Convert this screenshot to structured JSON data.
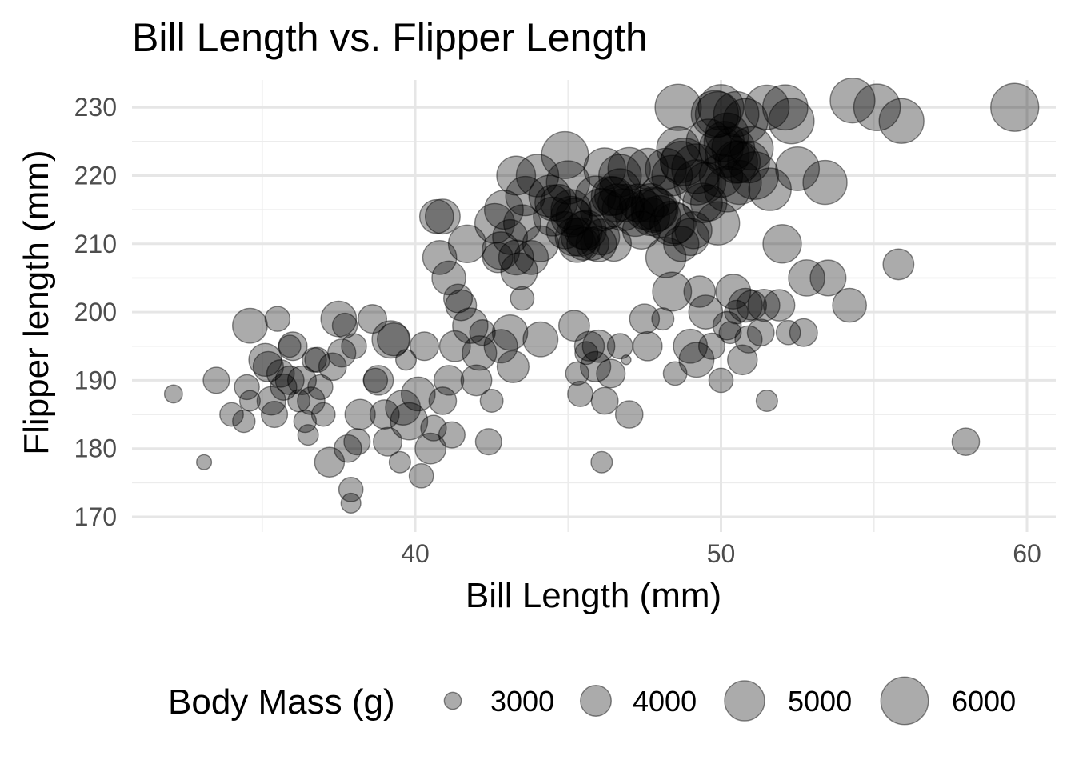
{
  "chart_data": {
    "type": "scatter",
    "title": "Bill Length vs. Flipper Length",
    "xlabel": "Bill Length (mm)",
    "ylabel": "Flipper length (mm)",
    "xlim": [
      31.5,
      60.5
    ],
    "ylim": [
      169,
      234
    ],
    "x_ticks": [
      40,
      50,
      60
    ],
    "y_ticks": [
      170,
      180,
      190,
      200,
      210,
      220,
      230
    ],
    "grid": true,
    "legend": {
      "title": "Body Mass (g)",
      "placement": "bottom",
      "sizes": [
        3000,
        4000,
        5000,
        6000
      ]
    },
    "size_range": [
      2700,
      6300
    ],
    "point_color": "#000000",
    "point_opacity": 0.33,
    "points": [
      [
        32.1,
        188,
        3050
      ],
      [
        33.1,
        178,
        2900
      ],
      [
        33.5,
        190,
        3600
      ],
      [
        34.0,
        185,
        3400
      ],
      [
        34.4,
        184,
        3325
      ],
      [
        34.5,
        189,
        3500
      ],
      [
        34.6,
        198,
        4400
      ],
      [
        34.6,
        187,
        3200
      ],
      [
        35.1,
        193,
        4200
      ],
      [
        35.2,
        192,
        3950
      ],
      [
        35.3,
        187,
        3800
      ],
      [
        35.5,
        199,
        3500
      ],
      [
        35.6,
        191,
        3700
      ],
      [
        35.7,
        189,
        3600
      ],
      [
        35.9,
        190,
        3800
      ],
      [
        35.9,
        195,
        3300
      ],
      [
        36.0,
        195,
        3800
      ],
      [
        36.2,
        187,
        3300
      ],
      [
        36.4,
        184,
        3325
      ],
      [
        36.5,
        182,
        3200
      ],
      [
        36.6,
        187,
        3700
      ],
      [
        36.7,
        193,
        3450
      ],
      [
        36.8,
        193,
        3500
      ],
      [
        37.0,
        185,
        3400
      ],
      [
        37.2,
        178,
        3900
      ],
      [
        37.3,
        192,
        3700
      ],
      [
        37.6,
        194,
        3750
      ],
      [
        37.7,
        198,
        3500
      ],
      [
        37.8,
        180,
        3700
      ],
      [
        37.9,
        172,
        3150
      ],
      [
        38.1,
        181,
        3600
      ],
      [
        38.2,
        185,
        3950
      ],
      [
        38.6,
        199,
        3800
      ],
      [
        38.8,
        190,
        3900
      ],
      [
        39.0,
        185,
        3850
      ],
      [
        39.2,
        196,
        4675
      ],
      [
        39.5,
        178,
        3250
      ],
      [
        39.6,
        186,
        4400
      ],
      [
        39.7,
        193,
        3200
      ],
      [
        40.1,
        188,
        4300
      ],
      [
        40.3,
        195,
        3800
      ],
      [
        40.6,
        183,
        3550
      ],
      [
        40.9,
        187,
        3700
      ],
      [
        41.1,
        190,
        3900
      ],
      [
        41.3,
        195,
        4000
      ],
      [
        41.5,
        201,
        4000
      ],
      [
        41.8,
        198,
        4450
      ],
      [
        42.0,
        190,
        4000
      ],
      [
        42.2,
        197,
        3550
      ],
      [
        42.5,
        187,
        3350
      ],
      [
        42.8,
        195,
        4250
      ],
      [
        43.2,
        192,
        4100
      ],
      [
        43.5,
        202,
        3400
      ],
      [
        44.1,
        196,
        4400
      ],
      [
        40.5,
        180,
        4000
      ],
      [
        40.2,
        176,
        3450
      ],
      [
        39.8,
        184,
        4650
      ],
      [
        39.1,
        181,
        3800
      ],
      [
        38.0,
        195,
        3500
      ],
      [
        37.5,
        199,
        4475
      ],
      [
        36.9,
        189,
        3500
      ],
      [
        36.3,
        190,
        3800
      ],
      [
        35.4,
        185,
        3600
      ],
      [
        37.9,
        174,
        3450
      ],
      [
        38.7,
        190,
        3450
      ],
      [
        39.3,
        196,
        4200
      ],
      [
        40.8,
        208,
        4300
      ],
      [
        41.1,
        205,
        4300
      ],
      [
        41.4,
        202,
        3800
      ],
      [
        40.7,
        214,
        4300
      ],
      [
        42.1,
        194,
        4350
      ],
      [
        43.1,
        197,
        4450
      ],
      [
        42.4,
        181,
        3600
      ],
      [
        41.2,
        182,
        3600
      ],
      [
        40.9,
        214,
        4400
      ],
      [
        45.2,
        198,
        4000
      ],
      [
        46.1,
        178,
        3250
      ],
      [
        45.5,
        210,
        4200
      ],
      [
        45.9,
        192,
        3950
      ],
      [
        46.4,
        191,
        3800
      ],
      [
        46.7,
        195,
        3525
      ],
      [
        47.0,
        185,
        3700
      ],
      [
        47.5,
        199,
        3900
      ],
      [
        48.1,
        199,
        3300
      ],
      [
        48.5,
        191,
        3400
      ],
      [
        49.0,
        195,
        4300
      ],
      [
        49.5,
        200,
        4300
      ],
      [
        50.0,
        190,
        3450
      ],
      [
        50.3,
        197,
        3300
      ],
      [
        50.7,
        193,
        3900
      ],
      [
        51.0,
        201,
        3900
      ],
      [
        51.5,
        187,
        3250
      ],
      [
        51.9,
        201,
        4050
      ],
      [
        52.0,
        210,
        4800
      ],
      [
        52.2,
        197,
        3450
      ],
      [
        52.7,
        197,
        3725
      ],
      [
        52.8,
        205,
        4550
      ],
      [
        53.5,
        205,
        4500
      ],
      [
        54.2,
        201,
        4300
      ],
      [
        55.8,
        207,
        4000
      ],
      [
        58.0,
        181,
        3700
      ],
      [
        49.2,
        193,
        4400
      ],
      [
        49.7,
        195,
        3600
      ],
      [
        50.5,
        200,
        3400
      ],
      [
        50.9,
        196,
        3675
      ],
      [
        45.6,
        194,
        3350
      ],
      [
        46.0,
        195,
        4150
      ],
      [
        45.4,
        188,
        3525
      ],
      [
        46.9,
        193,
        2700
      ],
      [
        47.6,
        195,
        3850
      ],
      [
        49.3,
        203,
        4050
      ],
      [
        50.2,
        198,
        3775
      ],
      [
        51.3,
        197,
        3650
      ],
      [
        48.4,
        203,
        4850
      ],
      [
        45.7,
        195,
        3900
      ],
      [
        46.2,
        187,
        3650
      ],
      [
        45.3,
        191,
        3375
      ],
      [
        51.4,
        201,
        4100
      ],
      [
        50.8,
        201,
        4300
      ],
      [
        50.4,
        203,
        4400
      ],
      [
        46.1,
        211,
        4500
      ],
      [
        50.0,
        230,
        5700
      ],
      [
        48.7,
        210,
        4450
      ],
      [
        50.2,
        218,
        5700
      ],
      [
        45.1,
        215,
        5000
      ],
      [
        46.5,
        210,
        4400
      ],
      [
        46.3,
        215,
        4800
      ],
      [
        42.9,
        215,
        4850
      ],
      [
        46.1,
        215,
        5300
      ],
      [
        44.5,
        216,
        4500
      ],
      [
        47.8,
        215,
        5650
      ],
      [
        48.2,
        221,
        5100
      ],
      [
        50.0,
        220,
        5400
      ],
      [
        47.3,
        216,
        4725
      ],
      [
        42.8,
        209,
        4700
      ],
      [
        45.1,
        214,
        5050
      ],
      [
        59.6,
        230,
        6050
      ],
      [
        49.1,
        212,
        4625
      ],
      [
        48.4,
        213,
        5550
      ],
      [
        42.6,
        213,
        4950
      ],
      [
        44.4,
        217,
        5200
      ],
      [
        44.0,
        220,
        5300
      ],
      [
        48.7,
        222,
        5150
      ],
      [
        49.6,
        216,
        4550
      ],
      [
        49.6,
        225,
        5600
      ],
      [
        50.5,
        229,
        5650
      ],
      [
        43.5,
        213,
        4650
      ],
      [
        50.2,
        223,
        5500
      ],
      [
        46.9,
        216,
        4650
      ],
      [
        45.4,
        211,
        4800
      ],
      [
        46.2,
        221,
        5200
      ],
      [
        50.0,
        224,
        5500
      ],
      [
        43.3,
        208,
        4400
      ],
      [
        49.9,
        213,
        5400
      ],
      [
        47.5,
        215,
        4875
      ],
      [
        45.3,
        210,
        4650
      ],
      [
        49.2,
        221,
        6300
      ],
      [
        48.8,
        222,
        6000
      ],
      [
        44.5,
        214,
        4850
      ],
      [
        51.1,
        220,
        6000
      ],
      [
        45.2,
        214,
        4550
      ],
      [
        45.5,
        212,
        4750
      ],
      [
        46.8,
        215,
        5200
      ],
      [
        48.6,
        230,
        5800
      ],
      [
        50.6,
        219,
        5500
      ],
      [
        52.5,
        221,
        5450
      ],
      [
        54.3,
        231,
        5600
      ],
      [
        55.1,
        230,
        5850
      ],
      [
        55.9,
        228,
        5600
      ],
      [
        53.4,
        219,
        5500
      ],
      [
        52.1,
        230,
        5650
      ],
      [
        51.5,
        230,
        5550
      ],
      [
        49.9,
        229,
        5650
      ],
      [
        48.6,
        224,
        5350
      ],
      [
        50.1,
        225,
        5000
      ],
      [
        47.7,
        214,
        4750
      ],
      [
        45.2,
        211,
        4725
      ],
      [
        44.9,
        212,
        4650
      ],
      [
        46.5,
        217,
        4800
      ],
      [
        47.2,
        214,
        4950
      ],
      [
        43.8,
        208,
        4300
      ],
      [
        42.7,
        208,
        3950
      ],
      [
        43.4,
        206,
        4600
      ],
      [
        44.1,
        210,
        4500
      ],
      [
        41.7,
        210,
        4700
      ],
      [
        43.6,
        217,
        4900
      ],
      [
        45.8,
        210,
        4200
      ],
      [
        46.4,
        217,
        4875
      ],
      [
        47.0,
        221,
        5300
      ],
      [
        47.4,
        212,
        4725
      ],
      [
        48.0,
        214,
        5200
      ],
      [
        48.5,
        213,
        5100
      ],
      [
        49.0,
        211,
        4650
      ],
      [
        49.4,
        216,
        4925
      ],
      [
        49.8,
        229,
        5950
      ],
      [
        50.4,
        224,
        5350
      ],
      [
        50.9,
        222,
        5200
      ],
      [
        51.6,
        218,
        5300
      ],
      [
        52.3,
        228,
        5700
      ],
      [
        46.6,
        216,
        4750
      ],
      [
        45.9,
        217,
        5000
      ],
      [
        47.9,
        215,
        5300
      ],
      [
        48.2,
        208,
        5000
      ],
      [
        43.3,
        220,
        4850
      ],
      [
        44.7,
        216,
        4600
      ],
      [
        43.1,
        211,
        4400
      ],
      [
        47.6,
        221,
        5100
      ],
      [
        46.0,
        210,
        4500
      ],
      [
        46.7,
        218,
        5100
      ],
      [
        50.5,
        222,
        5300
      ],
      [
        45.0,
        219,
        5400
      ],
      [
        50.8,
        228,
        5600
      ],
      [
        49.5,
        219,
        5000
      ],
      [
        48.4,
        220,
        5050
      ],
      [
        45.6,
        212,
        4950
      ],
      [
        44.9,
        223,
        5900
      ],
      [
        48.0,
        217,
        5100
      ],
      [
        50.2,
        226,
        5400
      ],
      [
        51.0,
        224,
        5400
      ],
      [
        46.7,
        220,
        5300
      ],
      [
        47.7,
        216,
        4800
      ],
      [
        49.2,
        219,
        5650
      ],
      [
        50.6,
        222,
        5200
      ]
    ]
  }
}
